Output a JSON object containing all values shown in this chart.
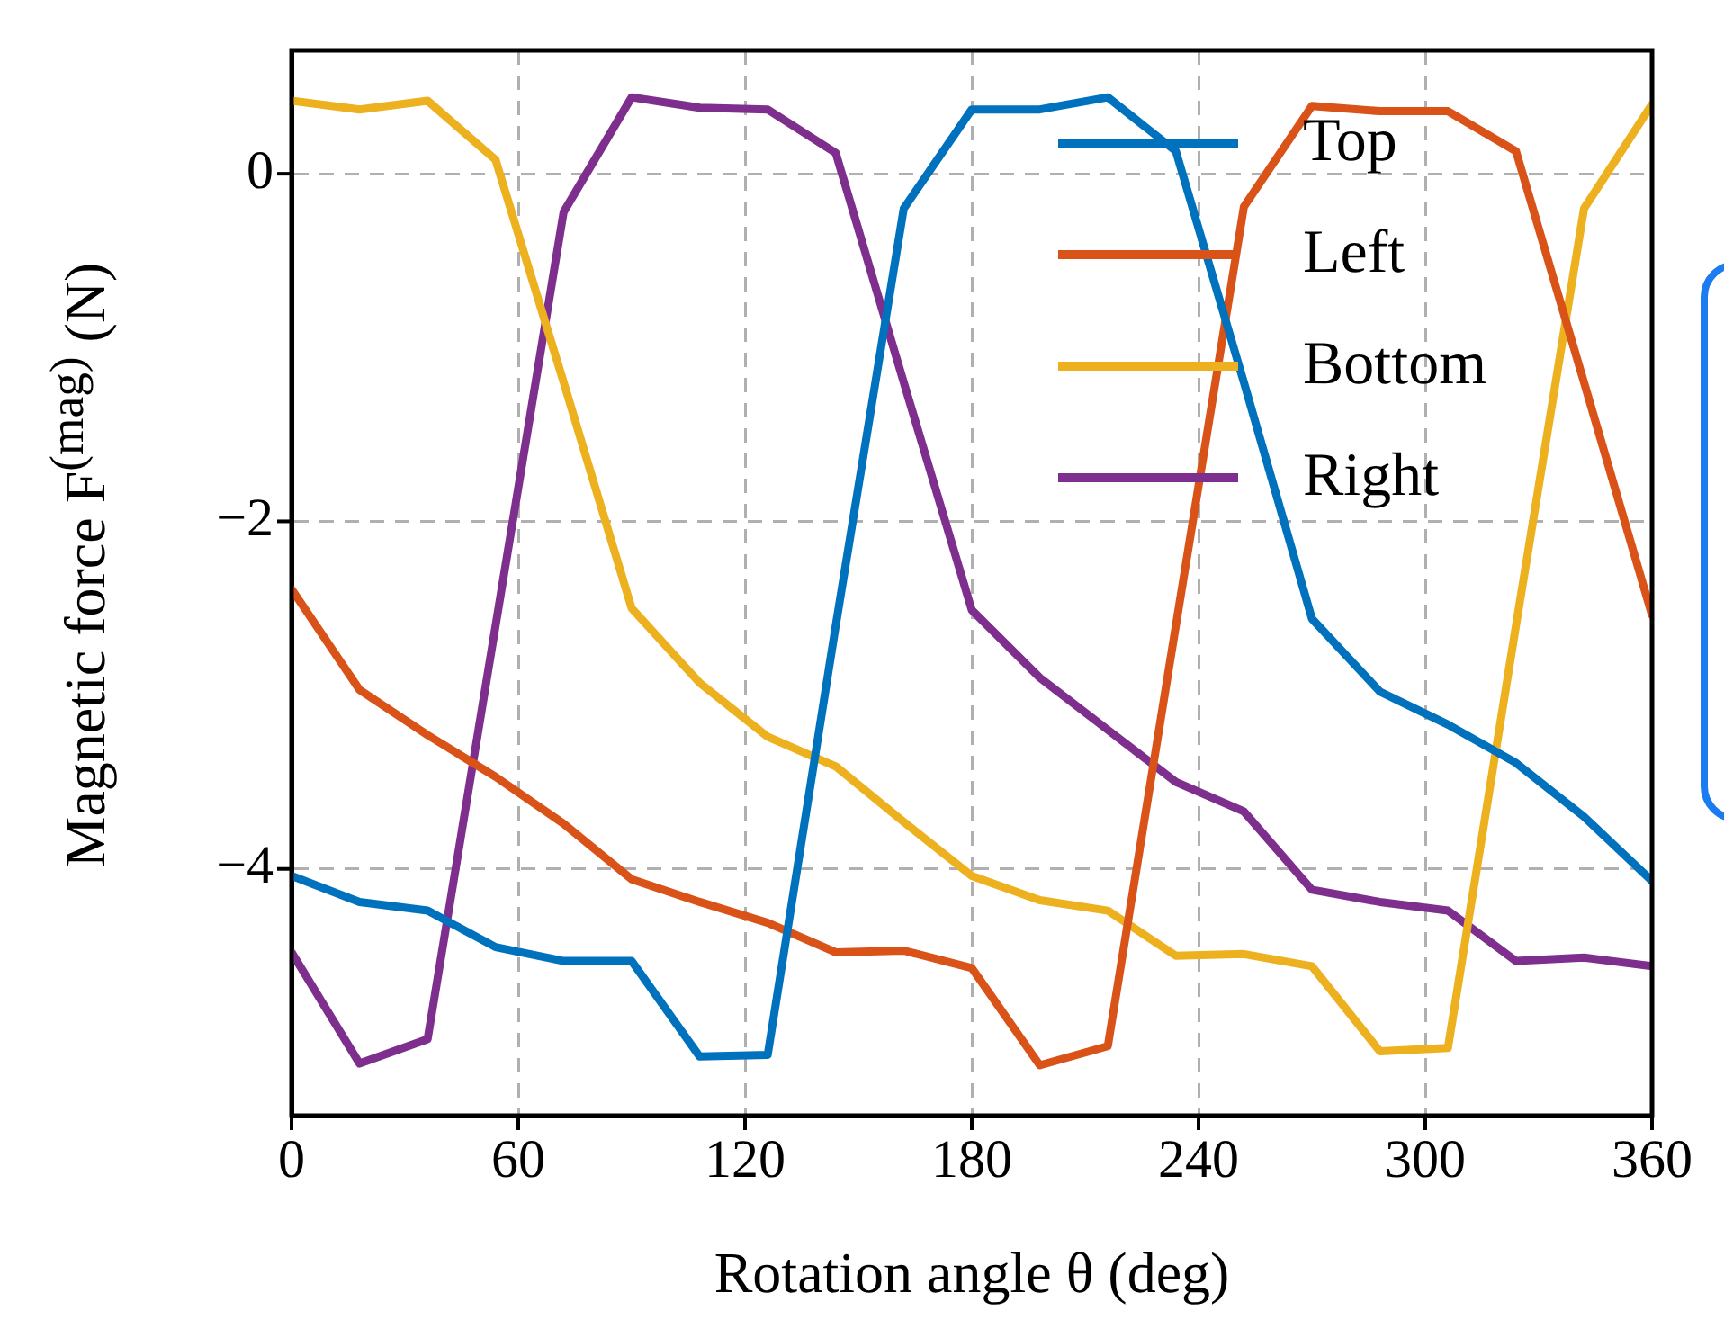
{
  "chart_data": {
    "type": "line",
    "xlabel": "Rotation angle θ (deg)",
    "ylabel": "Magnetic force F$^{(mag)}$ (N)",
    "x": [
      0,
      18,
      36,
      54,
      72,
      90,
      108,
      126,
      144,
      162,
      180,
      198,
      216,
      234,
      252,
      270,
      288,
      306,
      324,
      342,
      360
    ],
    "series": [
      {
        "name": "Top",
        "color": "#0072bd",
        "values": [
          -4.04,
          -4.19,
          -4.24,
          -4.45,
          -4.53,
          -4.53,
          -5.08,
          -5.07,
          -2.6,
          -0.2,
          0.37,
          0.37,
          0.44,
          0.13,
          -1.2,
          -2.56,
          -2.98,
          -3.17,
          -3.39,
          -3.7,
          -4.07
        ]
      },
      {
        "name": "Left",
        "color": "#d95319",
        "values": [
          -2.39,
          -2.97,
          -3.23,
          -3.47,
          -3.74,
          -4.06,
          -4.19,
          -4.31,
          -4.48,
          -4.47,
          -4.57,
          -5.13,
          -5.02,
          -2.6,
          -0.19,
          0.39,
          0.36,
          0.36,
          0.13,
          -1.2,
          -2.54
        ]
      },
      {
        "name": "Bottom",
        "color": "#edb120",
        "values": [
          0.42,
          0.37,
          0.42,
          0.08,
          -1.2,
          -2.5,
          -2.93,
          -3.24,
          -3.41,
          -3.73,
          -4.04,
          -4.18,
          -4.24,
          -4.5,
          -4.49,
          -4.56,
          -5.05,
          -5.03,
          -2.6,
          -0.2,
          0.4
        ]
      },
      {
        "name": "Right",
        "color": "#7e2f8e",
        "values": [
          -4.48,
          -5.12,
          -4.98,
          -2.6,
          -0.22,
          0.44,
          0.38,
          0.37,
          0.12,
          -1.2,
          -2.51,
          -2.9,
          -3.2,
          -3.5,
          -3.67,
          -4.12,
          -4.19,
          -4.24,
          -4.53,
          -4.51,
          -4.56
        ]
      }
    ],
    "xlim": [
      0,
      360
    ],
    "xticks": [
      0,
      60,
      120,
      180,
      240,
      300,
      360
    ],
    "ylim": [
      -5.42,
      0.71
    ],
    "yticks": [
      {
        "value": -4,
        "label": "−4"
      },
      {
        "value": -2,
        "label": "−2"
      },
      0
    ],
    "grid": true,
    "legend": "top right",
    "marker": "none",
    "line_style": "solid"
  }
}
